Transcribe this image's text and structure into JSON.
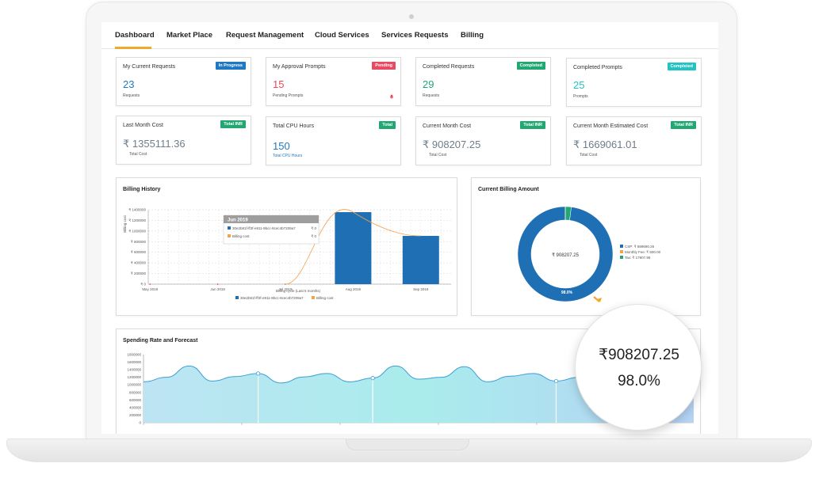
{
  "nav": {
    "items": [
      "Dashboard",
      "Market Place",
      "Request Management",
      "Cloud Services",
      "Services Requests",
      "Billing"
    ],
    "active": "Dashboard"
  },
  "cards": [
    {
      "title": "My Current Requests",
      "badge": "In Progress",
      "value": "23",
      "sub": "Requests"
    },
    {
      "title": "My Approval Prompts",
      "badge": "Pending",
      "value": "15",
      "sub": "Pending Prompts"
    },
    {
      "title": "Completed Requests",
      "badge": "Completed",
      "value": "29",
      "sub": "Requests"
    },
    {
      "title": "Completed Prompts",
      "badge": "Completed",
      "value": "25",
      "sub": "Prompts"
    },
    {
      "title": "Last Month Cost",
      "badge": "Total INR",
      "value": "₹ 1355111.36",
      "sub": "Total Cost"
    },
    {
      "title": "Total CPU Hours",
      "badge": "Total",
      "value": "150",
      "sub": "Total CPU Hours"
    },
    {
      "title": "Current Month Cost",
      "badge": "Total INR",
      "value": "₹ 908207.25",
      "sub": "Total Cost"
    },
    {
      "title": "Current Month Estimated Cost",
      "badge": "Total INR",
      "value": "₹ 1669061.01",
      "sub": "Total Cost"
    }
  ],
  "colors": {
    "accent": "#f0a92b",
    "blue": "#1f78c1",
    "red": "#e84a5f",
    "green": "#22a773",
    "teal": "#22c3c3",
    "bar": "#1f6fb5",
    "line": "#f5a04a"
  },
  "billing_history": {
    "title": "Billing History",
    "ylabel": "Billing cost",
    "xlabel": "Billing cycle (Last 5 months)",
    "yticks": [
      "₹ 0",
      "₹ 200000",
      "₹ 400000",
      "₹ 600000",
      "₹ 800000",
      "₹ 1000000",
      "₹ 1200000",
      "₹ 1400000"
    ],
    "xticks": [
      "May 2019",
      "Jun 2019",
      "Jul 2019",
      "Aug 2019",
      "Sep 2019"
    ],
    "legend": [
      "30e2b81f-ff3f-e911-9bcc-8cec4b7209a7",
      "Billing cost"
    ],
    "tooltip": {
      "title": "Jun 2019",
      "rows": [
        {
          "label": "30e2b81f-ff3f-e911-9bcc-8cec4b7209a7",
          "value": "₹ 0"
        },
        {
          "label": "Billing cost",
          "value": "₹ 0"
        }
      ]
    }
  },
  "current_billing": {
    "title": "Current Billing Amount",
    "center_label": "₹ 908207.25",
    "slice_label": "98.0%",
    "legend": [
      "CSP: ₹ 889690.26",
      "Monthly Fee: ₹ 500.00",
      "Tax: ₹ 17807.99"
    ]
  },
  "spending": {
    "title": "Spending Rate and Forecast",
    "yticks": [
      "0",
      "200000",
      "400000",
      "600000",
      "800000",
      "1000000",
      "1200000",
      "1400000",
      "1600000",
      "1800000"
    ]
  },
  "magnifier": {
    "amount": "₹908207.25",
    "percent": "98.0%"
  },
  "chart_data": [
    {
      "type": "bar",
      "title": "Billing History",
      "xlabel": "Billing cycle (Last 5 months)",
      "ylabel": "Billing cost",
      "categories": [
        "May 2019",
        "Jun 2019",
        "Jul 2019",
        "Aug 2019",
        "Sep 2019"
      ],
      "ylim": [
        0,
        1400000
      ],
      "series": [
        {
          "name": "30e2b81f-ff3f-e911-9bcc-8cec4b7209a7",
          "values": [
            0,
            0,
            0,
            1355111,
            908207
          ]
        },
        {
          "name": "Billing cost",
          "values": [
            0,
            0,
            0,
            1355111,
            908207
          ]
        }
      ],
      "grid": true,
      "legend": "bottom"
    },
    {
      "type": "pie",
      "title": "Current Billing Amount",
      "labels": [
        "CSP",
        "Monthly Fee",
        "Tax"
      ],
      "values": [
        889690.26,
        500.0,
        17807.99
      ],
      "legend": "right"
    },
    {
      "type": "area",
      "title": "Spending Rate and Forecast",
      "ylim": [
        0,
        1800000
      ],
      "x": [
        0,
        1,
        2,
        3,
        4,
        5,
        6,
        7,
        8,
        9,
        10,
        11,
        12,
        13,
        14,
        15,
        16,
        17,
        18,
        19,
        20,
        21,
        22,
        23,
        24
      ],
      "values": [
        1080000,
        1200000,
        1500000,
        1100000,
        1220000,
        1300000,
        1050000,
        1210000,
        1300000,
        1080000,
        1180000,
        1500000,
        1150000,
        1200000,
        1480000,
        1080000,
        1230000,
        1300000,
        1100000,
        1200000,
        1300000,
        1050000,
        1200000,
        1350000,
        1200000
      ]
    }
  ]
}
